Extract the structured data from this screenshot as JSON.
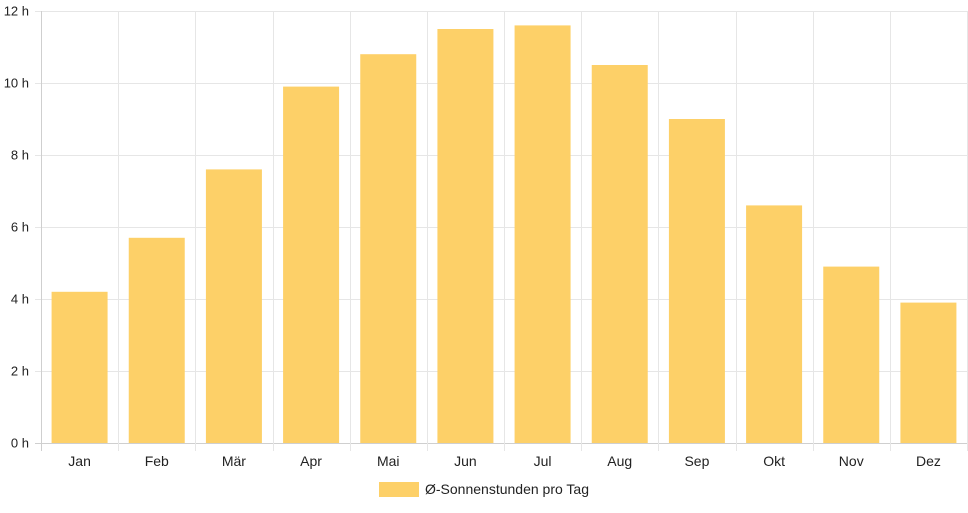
{
  "colors": {
    "bar": "#fdd068",
    "grid": "#e6e6e6",
    "axis": "#cfcfcf",
    "text": "#222222"
  },
  "legend": {
    "label": "Ø-Sonnenstunden pro Tag"
  },
  "chart_data": {
    "type": "bar",
    "title": "",
    "xlabel": "",
    "ylabel": "",
    "categories": [
      "Jan",
      "Feb",
      "Mär",
      "Apr",
      "Mai",
      "Jun",
      "Jul",
      "Aug",
      "Sep",
      "Okt",
      "Nov",
      "Dez"
    ],
    "series": [
      {
        "name": "Ø-Sonnenstunden pro Tag",
        "values": [
          4.2,
          5.7,
          7.6,
          9.9,
          10.8,
          11.5,
          11.6,
          10.5,
          9.0,
          6.6,
          4.9,
          3.9
        ]
      }
    ],
    "ylim": [
      0,
      12
    ],
    "yticks": [
      0,
      2,
      4,
      6,
      8,
      10,
      12
    ],
    "ytick_labels": [
      "0 h",
      "2 h",
      "4 h",
      "6 h",
      "8 h",
      "10 h",
      "12 h"
    ],
    "grid": true,
    "legend_position": "bottom"
  }
}
